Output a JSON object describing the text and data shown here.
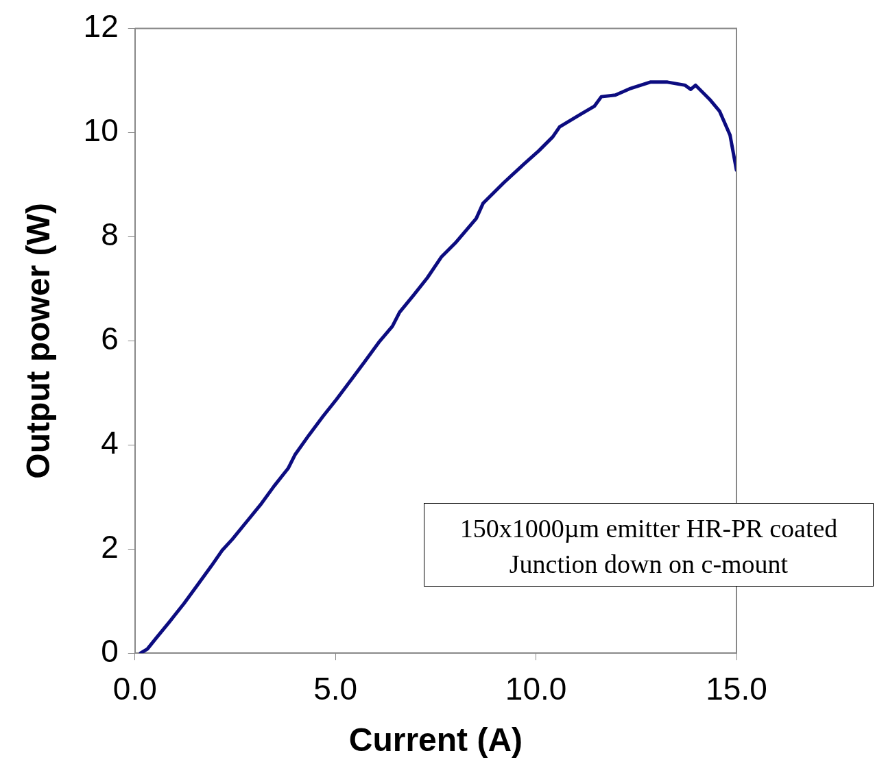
{
  "chart_data": {
    "type": "line",
    "xlabel": "Current (A)",
    "ylabel": "Output power (W)",
    "x": [
      0.14,
      0.31,
      0.52,
      0.87,
      1.22,
      1.56,
      1.91,
      2.17,
      2.43,
      2.78,
      3.13,
      3.47,
      3.82,
      3.99,
      4.34,
      4.69,
      5.03,
      5.38,
      5.73,
      6.08,
      6.42,
      6.6,
      6.95,
      7.29,
      7.64,
      7.99,
      8.51,
      8.68,
      9.2,
      9.72,
      10.07,
      10.42,
      10.59,
      11.11,
      11.46,
      11.63,
      11.98,
      12.33,
      12.85,
      13.28,
      13.72,
      13.86,
      13.98,
      14.33,
      14.58,
      14.84,
      15.0
    ],
    "series": [
      {
        "color": "#0c0c80",
        "values": [
          0,
          0.08,
          0.28,
          0.61,
          0.95,
          1.31,
          1.68,
          1.97,
          2.19,
          2.52,
          2.85,
          3.21,
          3.55,
          3.81,
          4.19,
          4.55,
          4.88,
          5.24,
          5.6,
          5.97,
          6.28,
          6.55,
          6.88,
          7.21,
          7.61,
          7.88,
          8.35,
          8.64,
          9.04,
          9.41,
          9.65,
          9.92,
          10.11,
          10.35,
          10.51,
          10.69,
          10.72,
          10.84,
          10.97,
          10.97,
          10.91,
          10.83,
          10.91,
          10.64,
          10.41,
          9.95,
          9.28
        ]
      }
    ],
    "xlim": [
      0,
      15
    ],
    "ylim": [
      0,
      12
    ],
    "xticks": [
      {
        "value": 0,
        "label": "0.0"
      },
      {
        "value": 5,
        "label": "5.0"
      },
      {
        "value": 10,
        "label": "10.0"
      },
      {
        "value": 15,
        "label": "15.0"
      }
    ],
    "yticks": [
      0,
      2,
      4,
      6,
      8,
      10,
      12
    ],
    "annotations": [
      "150x1000µm emitter HR-PR coated\nJunction down on c-mount"
    ]
  }
}
